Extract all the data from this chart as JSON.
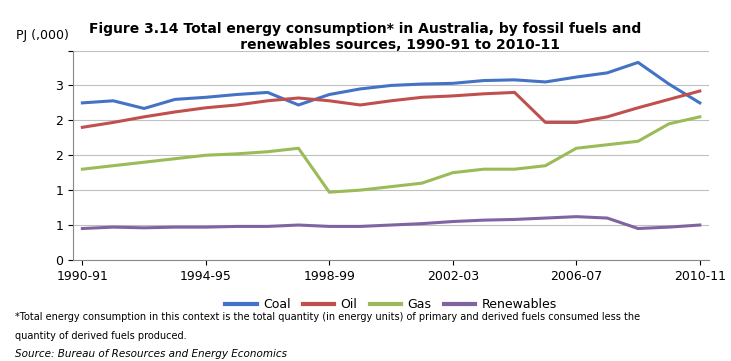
{
  "title": "Figure 3.14 Total energy consumption* in Australia, by fossil fuels and\n              renewables sources, 1990-91 to 2010-11",
  "ylabel": "PJ (,000)",
  "x_labels": [
    "1990-91",
    "1994-95",
    "1998-99",
    "2002-03",
    "2006-07",
    "2010-11"
  ],
  "x_positions": [
    0,
    4,
    8,
    12,
    16,
    20
  ],
  "coal": [
    2.25,
    2.28,
    2.17,
    2.3,
    2.33,
    2.37,
    2.4,
    2.22,
    2.37,
    2.45,
    2.5,
    2.52,
    2.53,
    2.57,
    2.58,
    2.55,
    2.62,
    2.68,
    2.83,
    2.52,
    2.25
  ],
  "oil": [
    1.9,
    1.97,
    2.05,
    2.12,
    2.18,
    2.22,
    2.28,
    2.32,
    2.28,
    2.22,
    2.28,
    2.33,
    2.35,
    2.38,
    2.4,
    1.97,
    1.97,
    2.05,
    2.18,
    2.3,
    2.42
  ],
  "gas": [
    1.3,
    1.35,
    1.4,
    1.45,
    1.5,
    1.52,
    1.55,
    1.6,
    0.97,
    1.0,
    1.05,
    1.1,
    1.25,
    1.3,
    1.3,
    1.35,
    1.6,
    1.65,
    1.7,
    1.95,
    2.05
  ],
  "renewables": [
    0.45,
    0.47,
    0.46,
    0.47,
    0.47,
    0.48,
    0.48,
    0.5,
    0.48,
    0.48,
    0.5,
    0.52,
    0.55,
    0.57,
    0.58,
    0.6,
    0.62,
    0.6,
    0.45,
    0.47,
    0.5
  ],
  "coal_color": "#4472C4",
  "oil_color": "#C0504D",
  "gas_color": "#9BBB59",
  "renewables_color": "#8064A2",
  "ylim": [
    0,
    3.0
  ],
  "yticks": [
    0,
    0.5,
    1.0,
    1.5,
    2.0,
    2.5,
    3.0
  ],
  "ytick_labels": [
    "0",
    "1",
    "1",
    "2",
    "2",
    "3",
    ""
  ],
  "footnote1": "*Total energy consumption in this context is the total quantity (in energy units) of primary and derived fuels consumed less the",
  "footnote2": "quantity of derived fuels produced.",
  "footnote3": "Source: Bureau of Resources and Energy Economics",
  "background_color": "#FFFFFF",
  "grid_color": "#C0C0C0"
}
